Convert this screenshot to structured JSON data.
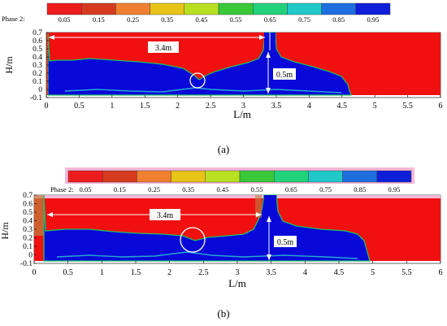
{
  "colorbar": {
    "label": "Phase 2:",
    "ticks": [
      "0.05",
      "0.15",
      "0.25",
      "0.35",
      "0.45",
      "0.55",
      "0.65",
      "0.75",
      "0.85",
      "0.95"
    ],
    "colors": [
      "#ee1c1c",
      "#d63a1e",
      "#f08030",
      "#e8c318",
      "#b8e020",
      "#38c838",
      "#22d27a",
      "#20c8c8",
      "#1e6ee0",
      "#0f1ed8"
    ]
  },
  "panels": [
    {
      "caption": "(a)",
      "y_ticks": [
        "0.7",
        "0.6",
        "0.5",
        "0.4",
        "0.3",
        "0.2",
        "0.1",
        "0",
        "-0.1"
      ],
      "x_ticks": [
        "0",
        "0.5",
        "1",
        "1.5",
        "2",
        "2.5",
        "3",
        "3.5",
        "4",
        "4.5",
        "5",
        "5.5",
        "6"
      ],
      "ylabel": "H/m",
      "xlabel": "L/m",
      "dim_length": "3.4m",
      "dim_depth": "0.5m"
    },
    {
      "caption": "(b)",
      "y_ticks": [
        "0.7",
        "0.6",
        "0.5",
        "0.4",
        "0.3",
        "0.2",
        "0.1",
        "0",
        "-0.1"
      ],
      "x_ticks": [
        "0",
        "0.5",
        "1",
        "1.5",
        "2",
        "2.5",
        "3",
        "3.5",
        "4",
        "4.5",
        "5",
        "5.5",
        "6"
      ],
      "ylabel": "H/m",
      "xlabel": "L/m",
      "dim_length": "3.4m",
      "dim_depth": "0.5m"
    }
  ],
  "colors": {
    "air": "#f01010",
    "water": "#0808d8",
    "interface": "#20c060"
  }
}
